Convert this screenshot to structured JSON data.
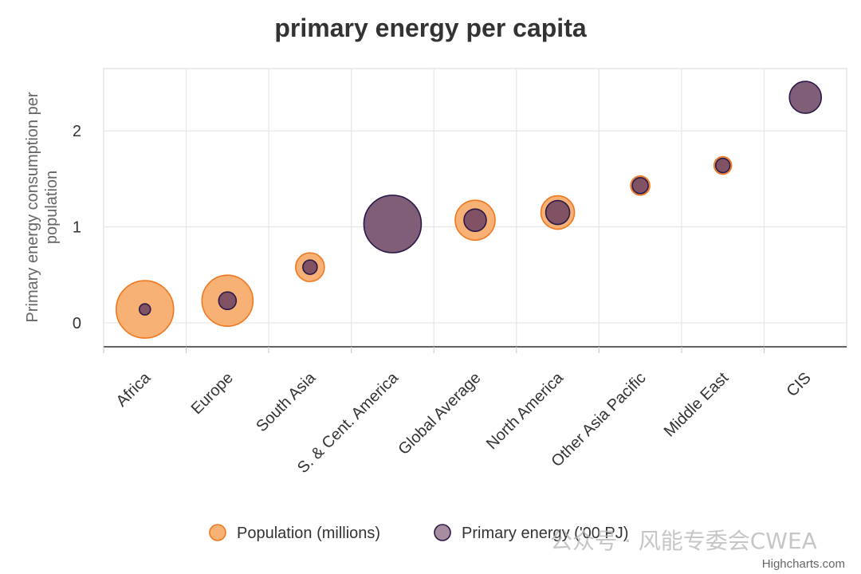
{
  "chart_data": {
    "type": "bubble",
    "title": "primary energy per capita",
    "ylabel": "Primary energy consumption per population",
    "xlabel": "",
    "ylim": [
      -0.25,
      2.65
    ],
    "yticks": [
      0,
      1,
      2
    ],
    "grid": true,
    "legend_position": "bottom-center",
    "categories": [
      "Africa",
      "Europe",
      "South Asia",
      "S. & Cent. America",
      "Global Average",
      "North America",
      "Other Asia Pacific",
      "Middle East",
      "CIS"
    ],
    "y": [
      0.14,
      0.23,
      0.58,
      1.03,
      1.07,
      1.15,
      1.43,
      1.64,
      2.35
    ],
    "series": [
      {
        "name": "Population (millions)",
        "color": "#f7a35c",
        "stroke": "#f07820",
        "size": [
          72,
          64,
          36,
          0,
          50,
          42,
          24,
          22,
          0
        ]
      },
      {
        "name": "Primary energy ('00 PJ)",
        "color": "#6b4260",
        "stroke": "#2b1a4a",
        "size": [
          14,
          22,
          18,
          72,
          28,
          30,
          20,
          18,
          40
        ]
      }
    ]
  },
  "credits": "Highcharts.com",
  "watermark": "公众号 · 风能专委会CWEA"
}
